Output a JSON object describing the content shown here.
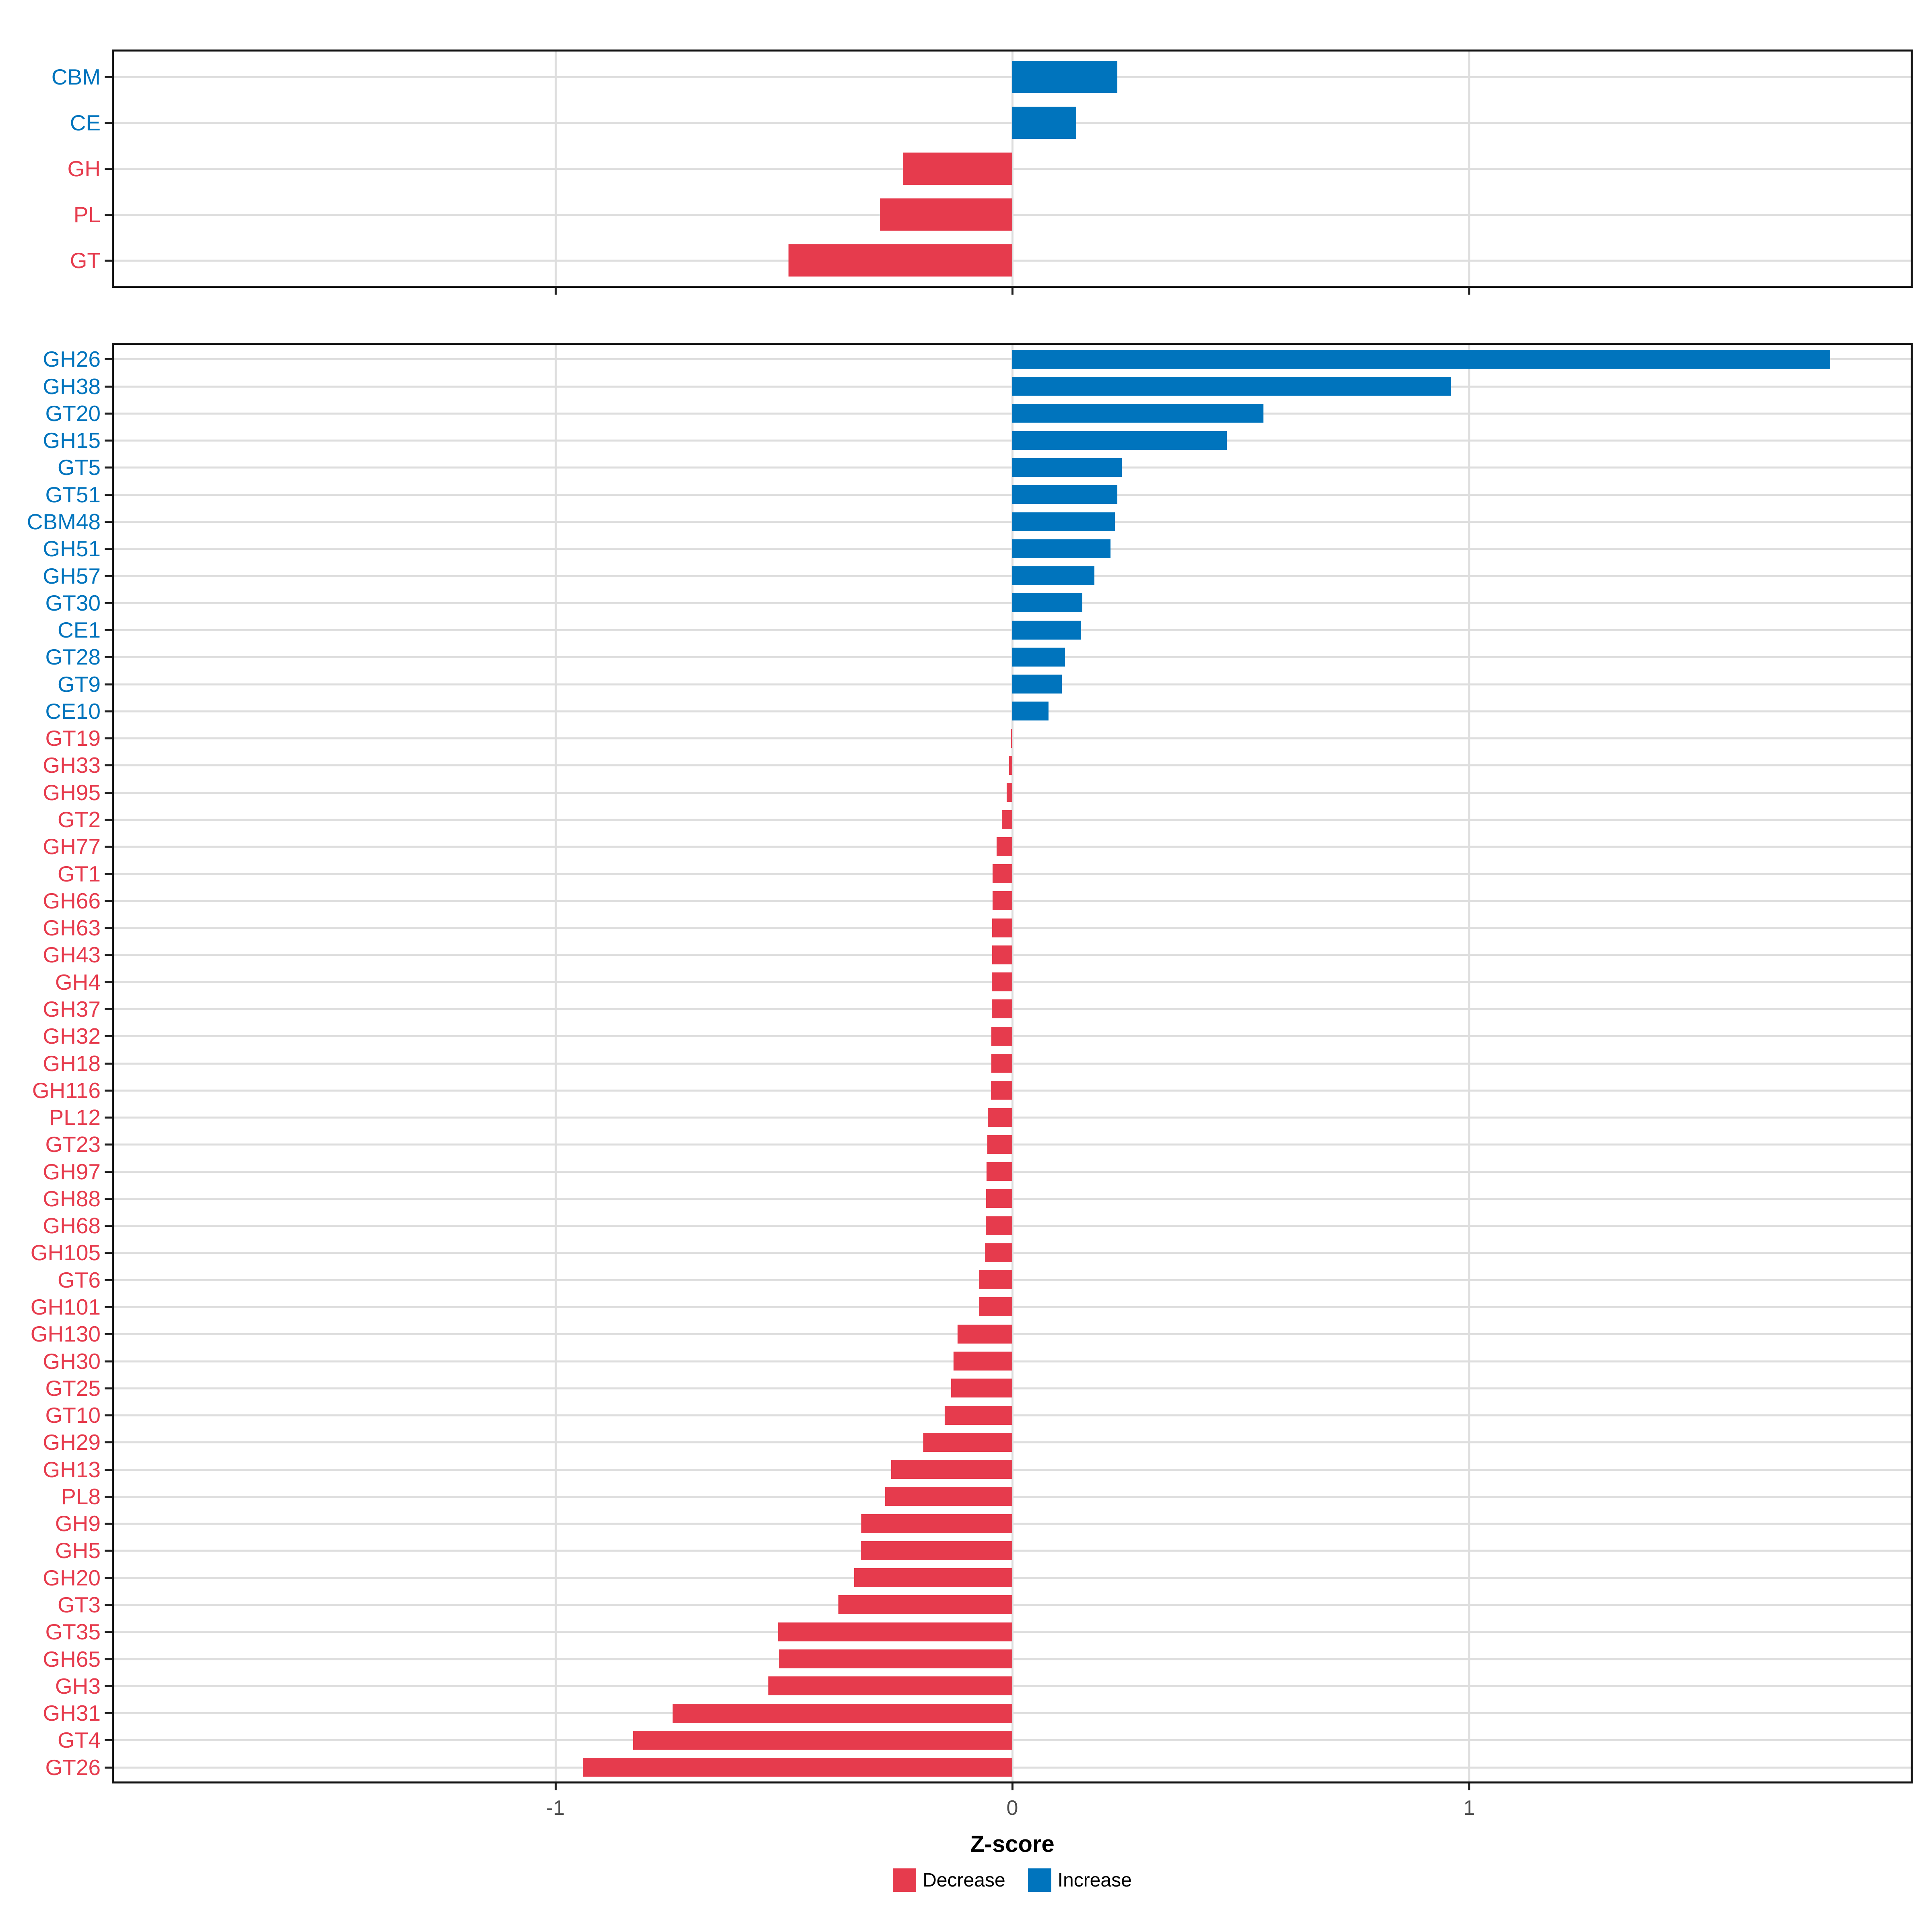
{
  "figure": {
    "axis_title": "Z-score",
    "colors": {
      "increase": "#0074bd",
      "decrease": "#e63b4d"
    },
    "legend": [
      {
        "label": "Decrease",
        "direction": "dec"
      },
      {
        "label": "Increase",
        "direction": "inc"
      }
    ]
  },
  "chart_data": [
    {
      "type": "bar",
      "panel": "top",
      "orientation": "horizontal",
      "xlabel": "Z-score",
      "xlim": [
        -1.97,
        1.97
      ],
      "xticks": [
        -1,
        0,
        1
      ],
      "grid": true,
      "legend_position": "bottom",
      "categories": [
        "CBM",
        "CE",
        "GH",
        "PL",
        "GT"
      ],
      "series": [
        {
          "name": "Z-score",
          "values": [
            0.23,
            0.14,
            -0.24,
            -0.29,
            -0.49
          ],
          "directions": [
            "inc",
            "inc",
            "dec",
            "dec",
            "dec"
          ]
        }
      ]
    },
    {
      "type": "bar",
      "panel": "bottom",
      "orientation": "horizontal",
      "xlabel": "Z-score",
      "xlim": [
        -1.97,
        1.97
      ],
      "xticks": [
        -1,
        0,
        1
      ],
      "grid": true,
      "legend_position": "bottom",
      "categories": [
        "GH26",
        "GH38",
        "GT20",
        "GH15",
        "GT5",
        "GT51",
        "CBM48",
        "GH51",
        "GH57",
        "GT30",
        "CE1",
        "GT28",
        "GT9",
        "CE10",
        "GT19",
        "GH33",
        "GH95",
        "GT2",
        "GH77",
        "GT1",
        "GH66",
        "GH63",
        "GH43",
        "GH4",
        "GH37",
        "GH32",
        "GH18",
        "GH116",
        "PL12",
        "GT23",
        "GH97",
        "GH88",
        "GH68",
        "GH105",
        "GT6",
        "GH101",
        "GH130",
        "GH30",
        "GT25",
        "GT10",
        "GH29",
        "GH13",
        "PL8",
        "GH9",
        "GH5",
        "GH20",
        "GT3",
        "GT35",
        "GH65",
        "GH3",
        "GH31",
        "GT4",
        "GT26"
      ],
      "series": [
        {
          "name": "Z-score",
          "values": [
            1.79,
            0.96,
            0.55,
            0.47,
            0.24,
            0.23,
            0.225,
            0.215,
            0.18,
            0.153,
            0.151,
            0.115,
            0.108,
            0.079,
            -0.003,
            -0.007,
            -0.012,
            -0.023,
            -0.034,
            -0.043,
            -0.043,
            -0.044,
            -0.044,
            -0.045,
            -0.045,
            -0.046,
            -0.046,
            -0.047,
            -0.054,
            -0.055,
            -0.056,
            -0.057,
            -0.058,
            -0.06,
            -0.073,
            -0.073,
            -0.12,
            -0.129,
            -0.134,
            -0.148,
            -0.195,
            -0.265,
            -0.278,
            -0.33,
            -0.331,
            -0.346,
            -0.381,
            -0.513,
            -0.511,
            -0.534,
            -0.744,
            -0.83,
            -0.94
          ],
          "directions": [
            "inc",
            "inc",
            "inc",
            "inc",
            "inc",
            "inc",
            "inc",
            "inc",
            "inc",
            "inc",
            "inc",
            "inc",
            "inc",
            "inc",
            "dec",
            "dec",
            "dec",
            "dec",
            "dec",
            "dec",
            "dec",
            "dec",
            "dec",
            "dec",
            "dec",
            "dec",
            "dec",
            "dec",
            "dec",
            "dec",
            "dec",
            "dec",
            "dec",
            "dec",
            "dec",
            "dec",
            "dec",
            "dec",
            "dec",
            "dec",
            "dec",
            "dec",
            "dec",
            "dec",
            "dec",
            "dec",
            "dec",
            "dec",
            "dec",
            "dec",
            "dec",
            "dec",
            "dec"
          ]
        }
      ]
    }
  ]
}
